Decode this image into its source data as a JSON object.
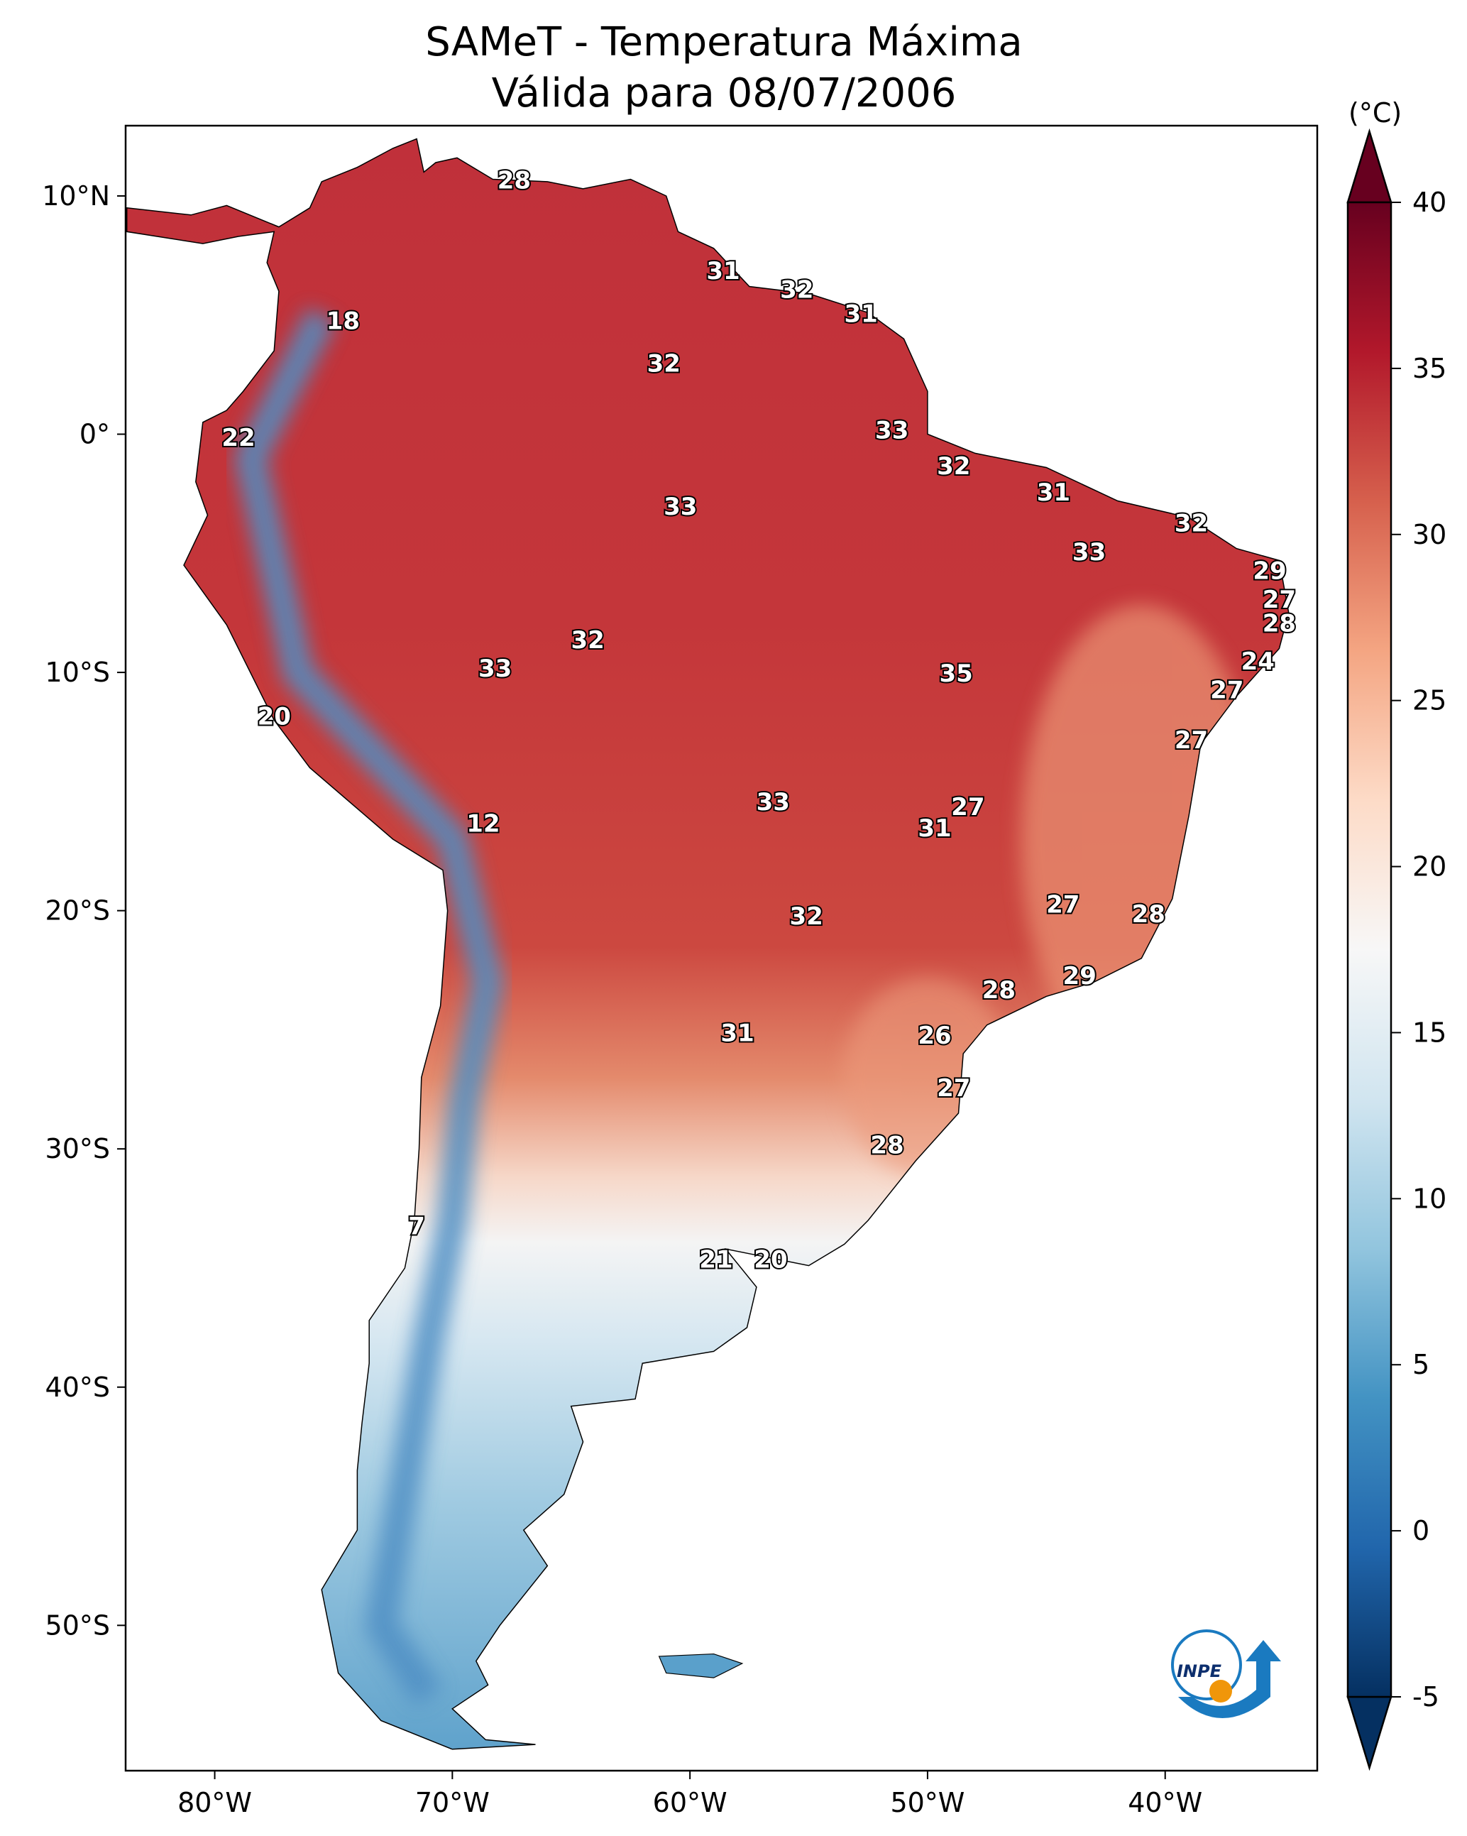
{
  "title": {
    "line1": "SAMeT - Temperatura Máxima",
    "line2": "Válida para 08/07/2006"
  },
  "colorbar": {
    "unit_label": "(°C)",
    "ticks": [
      -5,
      0,
      5,
      10,
      15,
      20,
      25,
      30,
      35,
      40
    ],
    "tick_labels": [
      "-5",
      "0",
      "5",
      "10",
      "15",
      "20",
      "25",
      "30",
      "35",
      "40"
    ],
    "range": [
      -5,
      40
    ],
    "extend": "both",
    "colormap": "RdBu_r",
    "colors": [
      "#053061",
      "#2166ac",
      "#4393c3",
      "#92c5de",
      "#d1e5f0",
      "#f7f7f7",
      "#fddbc7",
      "#f4a582",
      "#d6604d",
      "#b2182b",
      "#67001f"
    ]
  },
  "axes": {
    "x_ticks": [
      {
        "lon": -80,
        "label": "80°W"
      },
      {
        "lon": -70,
        "label": "70°W"
      },
      {
        "lon": -60,
        "label": "60°W"
      },
      {
        "lon": -50,
        "label": "50°W"
      },
      {
        "lon": -40,
        "label": "40°W"
      }
    ],
    "y_ticks": [
      {
        "lat": 10,
        "label": "10°N"
      },
      {
        "lat": 0,
        "label": "0°"
      },
      {
        "lat": -10,
        "label": "10°S"
      },
      {
        "lat": -20,
        "label": "20°S"
      },
      {
        "lat": -30,
        "label": "30°S"
      },
      {
        "lat": -40,
        "label": "40°S"
      },
      {
        "lat": -50,
        "label": "50°S"
      }
    ],
    "lon_range": [
      -83.75,
      -33.6
    ],
    "lat_range": [
      -56.1,
      12.95
    ]
  },
  "chart_data": {
    "type": "heatmap",
    "title": "SAMeT - Temperatura Máxima — Válida para 08/07/2006",
    "variable": "Maximum temperature (°C)",
    "station_labels": [
      {
        "value": "28",
        "lon": -67.4,
        "lat": 10.6
      },
      {
        "value": "31",
        "lon": -58.6,
        "lat": 6.8
      },
      {
        "value": "32",
        "lon": -55.5,
        "lat": 6.0
      },
      {
        "value": "31",
        "lon": -52.8,
        "lat": 5.0
      },
      {
        "value": "18",
        "lon": -74.6,
        "lat": 4.7
      },
      {
        "value": "32",
        "lon": -61.1,
        "lat": 2.9
      },
      {
        "value": "33",
        "lon": -51.5,
        "lat": 0.1
      },
      {
        "value": "22",
        "lon": -79.0,
        "lat": -0.2
      },
      {
        "value": "32",
        "lon": -48.9,
        "lat": -1.4
      },
      {
        "value": "31",
        "lon": -44.7,
        "lat": -2.5
      },
      {
        "value": "33",
        "lon": -60.4,
        "lat": -3.1
      },
      {
        "value": "32",
        "lon": -38.9,
        "lat": -3.8
      },
      {
        "value": "33",
        "lon": -43.2,
        "lat": -5.0
      },
      {
        "value": "29",
        "lon": -35.6,
        "lat": -5.8
      },
      {
        "value": "27",
        "lon": -35.2,
        "lat": -7.0
      },
      {
        "value": "28",
        "lon": -35.2,
        "lat": -8.0
      },
      {
        "value": "32",
        "lon": -64.3,
        "lat": -8.7
      },
      {
        "value": "24",
        "lon": -36.1,
        "lat": -9.6
      },
      {
        "value": "33",
        "lon": -68.2,
        "lat": -9.9
      },
      {
        "value": "35",
        "lon": -48.8,
        "lat": -10.1
      },
      {
        "value": "27",
        "lon": -37.4,
        "lat": -10.8
      },
      {
        "value": "20",
        "lon": -77.5,
        "lat": -11.9
      },
      {
        "value": "27",
        "lon": -38.9,
        "lat": -12.9
      },
      {
        "value": "33",
        "lon": -56.5,
        "lat": -15.5
      },
      {
        "value": "27",
        "lon": -48.3,
        "lat": -15.7
      },
      {
        "value": "12",
        "lon": -68.7,
        "lat": -16.4
      },
      {
        "value": "31",
        "lon": -49.7,
        "lat": -16.6
      },
      {
        "value": "27",
        "lon": -44.3,
        "lat": -19.8
      },
      {
        "value": "32",
        "lon": -55.1,
        "lat": -20.3
      },
      {
        "value": "28",
        "lon": -40.7,
        "lat": -20.2
      },
      {
        "value": "29",
        "lon": -43.6,
        "lat": -22.8
      },
      {
        "value": "28",
        "lon": -47.0,
        "lat": -23.4
      },
      {
        "value": "31",
        "lon": -58.0,
        "lat": -25.2
      },
      {
        "value": "26",
        "lon": -49.7,
        "lat": -25.3
      },
      {
        "value": "27",
        "lon": -48.9,
        "lat": -27.5
      },
      {
        "value": "28",
        "lon": -51.7,
        "lat": -29.9
      },
      {
        "value": "7",
        "lon": -71.5,
        "lat": -33.3
      },
      {
        "value": "21",
        "lon": -58.9,
        "lat": -34.7
      },
      {
        "value": "20",
        "lon": -56.6,
        "lat": -34.7
      }
    ]
  },
  "logo": {
    "text": "INPE",
    "blue": "#1a7ac0",
    "orange": "#f0960a"
  }
}
